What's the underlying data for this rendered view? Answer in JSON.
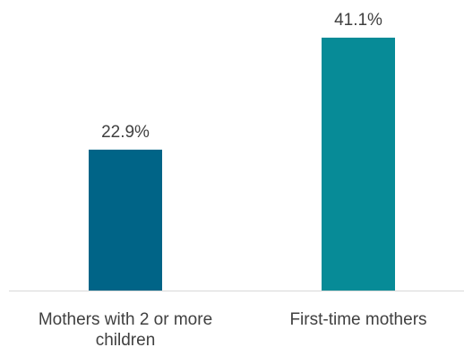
{
  "chart_data": {
    "type": "bar",
    "categories": [
      "Mothers with 2 or more children",
      "First-time mothers"
    ],
    "category_lines": [
      [
        "Mothers with 2 or more",
        "children"
      ],
      [
        "First-time mothers"
      ]
    ],
    "values": [
      22.9,
      41.1
    ],
    "value_labels": [
      "22.9%",
      "41.1%"
    ],
    "colors": [
      "#006487",
      "#078b97"
    ],
    "ylim": [
      0,
      41.1
    ],
    "grid": false,
    "legend": "none"
  }
}
